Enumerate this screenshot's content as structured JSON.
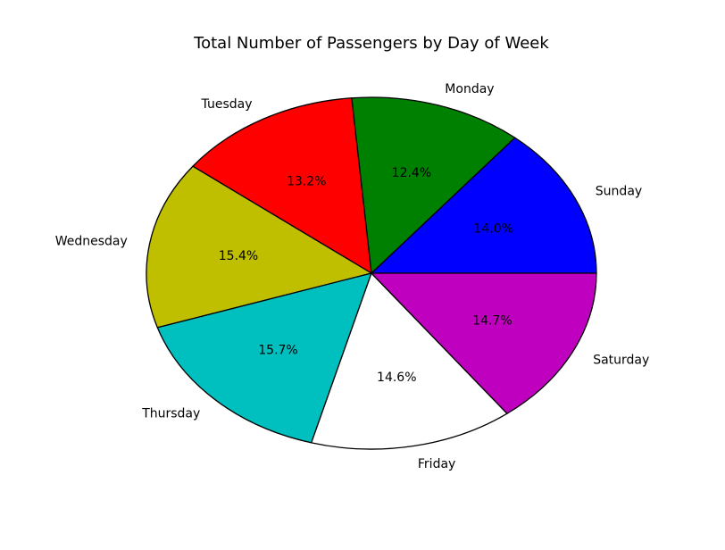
{
  "chart_data": {
    "type": "pie",
    "title": "Total Number of Passengers by Day of Week",
    "categories": [
      "Sunday",
      "Monday",
      "Tuesday",
      "Wednesday",
      "Thursday",
      "Friday",
      "Saturday"
    ],
    "values": [
      14.0,
      12.4,
      13.2,
      15.4,
      15.7,
      14.6,
      14.7
    ],
    "value_labels": [
      "14.0%",
      "12.4%",
      "13.2%",
      "15.4%",
      "15.7%",
      "14.6%",
      "14.7%"
    ],
    "colors": [
      "#0000ff",
      "#008000",
      "#ff0000",
      "#bfbf00",
      "#00bfbf",
      "#ffffff",
      "#bf00bf"
    ],
    "start_angle_deg": 0,
    "direction": "counterclockwise",
    "edge_color": "#000000"
  }
}
